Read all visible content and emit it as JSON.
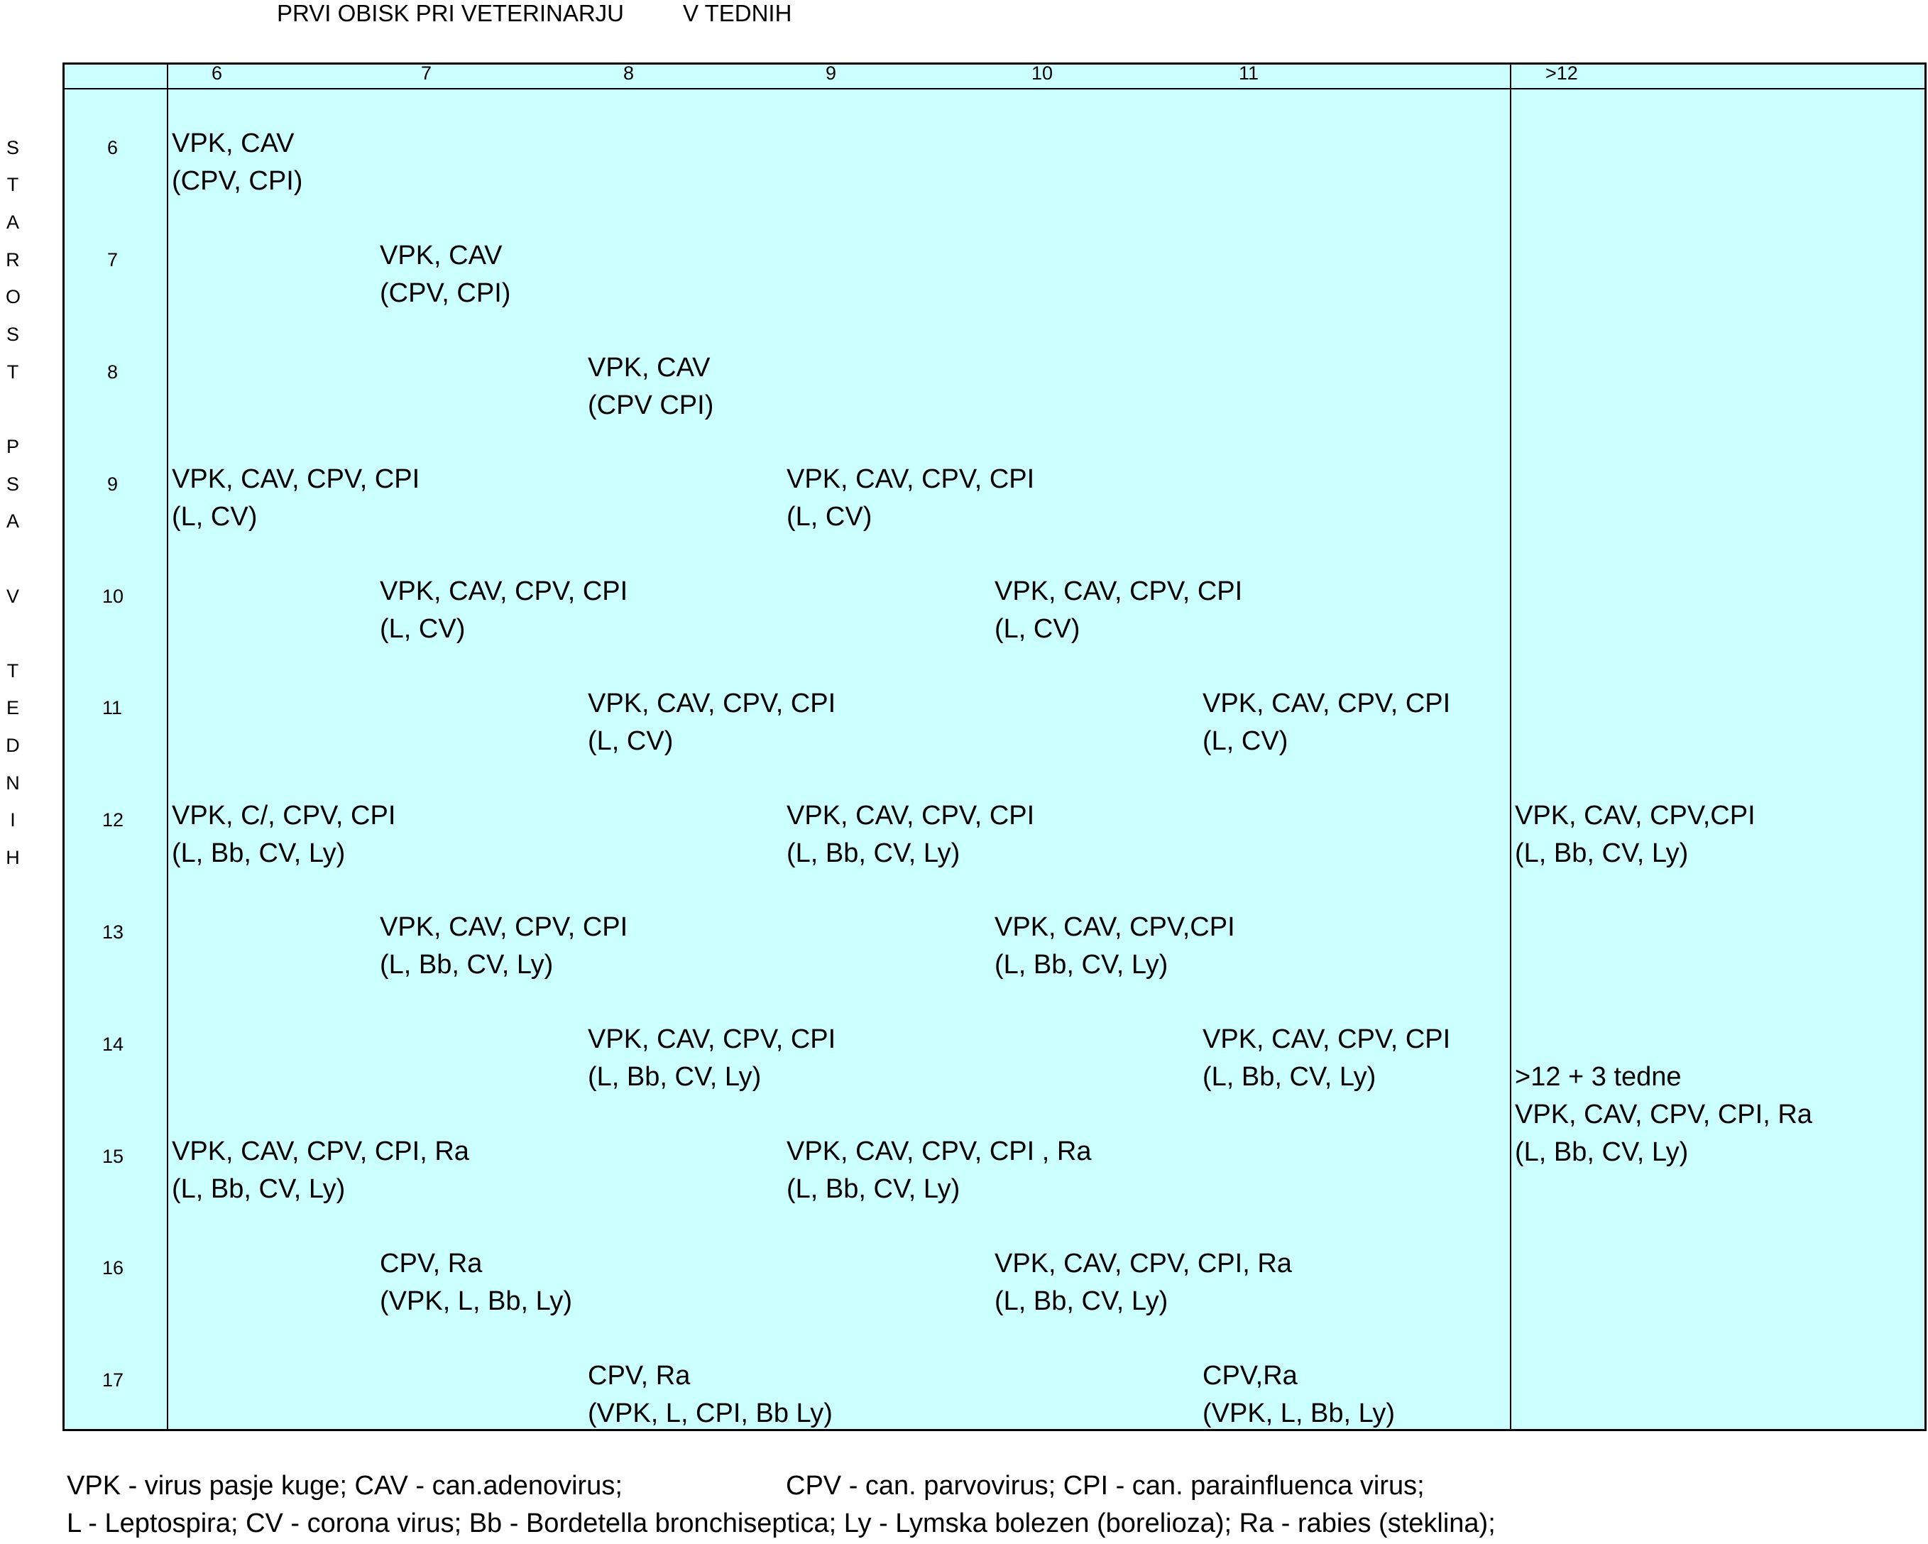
{
  "title_left": "PRVI OBISK PRI VETERINARJU",
  "title_right": "V TEDNIH",
  "column_headers": [
    "6",
    "7",
    "8",
    "9",
    "10",
    "11",
    ">12"
  ],
  "row_headers": [
    "6",
    "7",
    "8",
    "9",
    "10",
    "11",
    "12",
    "13",
    "14",
    "15",
    "16",
    "17"
  ],
  "side_label_letters": [
    "S",
    "T",
    "A",
    "R",
    "O",
    "S",
    "T",
    "",
    "P",
    "S",
    "A",
    "",
    "V",
    "",
    "T",
    "E",
    "D",
    "N",
    "I",
    "H"
  ],
  "cells": {
    "r6c6_l1": "VPK, CAV",
    "r6c6_l2": "(CPV, CPI)",
    "r7c7_l1": "VPK, CAV",
    "r7c7_l2": "(CPV, CPI)",
    "r8c8_l1": "VPK, CAV",
    "r8c8_l2": "(CPV CPI)",
    "r9c6_l1": "VPK, CAV, CPV, CPI",
    "r9c6_l2": "(L, CV)",
    "r9c9_l1": "VPK, CAV, CPV, CPI",
    "r9c9_l2": "(L, CV)",
    "r10c7_l1": "VPK, CAV, CPV, CPI",
    "r10c7_l2": "(L, CV)",
    "r10c10_l1": "VPK, CAV, CPV, CPI",
    "r10c10_l2": "(L, CV)",
    "r11c8_l1": "VPK, CAV, CPV, CPI",
    "r11c8_l2": "(L, CV)",
    "r11c11_l1": "VPK, CAV, CPV, CPI",
    "r11c11_l2": "(L, CV)",
    "r12c6_l1": "VPK, C/, CPV, CPI",
    "r12c6_l2": "(L, Bb, CV, Ly)",
    "r12c9_l1": "VPK, CAV, CPV, CPI",
    "r12c9_l2": "(L, Bb, CV, Ly)",
    "r12c12_l1": "VPK, CAV, CPV,CPI",
    "r12c12_l2": "(L, Bb, CV, Ly)",
    "r13c7_l1": "VPK, CAV, CPV, CPI",
    "r13c7_l2": "(L, Bb, CV, Ly)",
    "r13c10_l1": "VPK, CAV, CPV,CPI",
    "r13c10_l2": "(L, Bb, CV, Ly)",
    "r14c8_l1": "VPK, CAV, CPV, CPI",
    "r14c8_l2": "(L, Bb, CV, Ly)",
    "r14c11_l1": "VPK, CAV, CPV, CPI",
    "r14c11_l2": "(L, Bb, CV, Ly)",
    "r14c12_l1": ">12 + 3 tedne",
    "r14c12_l2": "VPK, CAV, CPV, CPI, Ra",
    "r14c12_l3": "(L, Bb, CV, Ly)",
    "r15c6_l1": "VPK, CAV, CPV, CPI, Ra",
    "r15c6_l2": "(L, Bb, CV, Ly)",
    "r15c9_l1": "VPK, CAV, CPV, CPI , Ra",
    "r15c9_l2": "(L, Bb, CV, Ly)",
    "r16c7_l1": "CPV, Ra",
    "r16c7_l2": "(VPK, L, Bb, Ly)",
    "r16c10_l1": "VPK, CAV, CPV, CPI, Ra",
    "r16c10_l2": "(L, Bb, CV, Ly)",
    "r17c8_l1": "CPV, Ra",
    "r17c8_l2": "(VPK, L, CPI, Bb Ly)",
    "r17c11_l1": "CPV,Ra",
    "r17c11_l2": "(VPK, L, Bb, Ly)"
  },
  "legend": {
    "line1_a": "VPK - virus pasje kuge; CAV - can.adenovirus;",
    "line1_b": "CPV - can. parvovirus; CPI - can. parainfluenca virus;",
    "line2": "L - Leptospira;   CV - corona virus; Bb - Bordetella bronchiseptica; Ly - Lymska bolezen (borelioza); Ra - rabies (steklina);"
  }
}
